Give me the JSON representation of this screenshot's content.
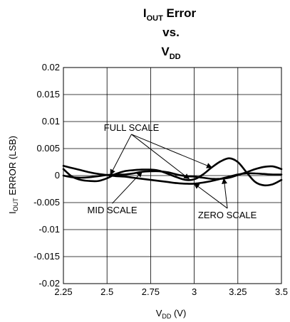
{
  "chart_data": {
    "type": "line",
    "title": {
      "line1_main": "I",
      "line1_sub": "OUT",
      "line1_rest": " Error",
      "line2": "vs.",
      "line3_main": "V",
      "line3_sub": "DD"
    },
    "xlabel": {
      "main": "V",
      "sub": "DD",
      "rest": " (V)"
    },
    "ylabel": {
      "main": "I",
      "sub": "OUT",
      "rest": " ERROR (LSB)"
    },
    "xlim": [
      2.25,
      3.5
    ],
    "ylim": [
      -0.02,
      0.02
    ],
    "x_ticks": [
      2.25,
      2.5,
      2.75,
      3,
      3.25,
      3.5
    ],
    "x_tick_labels": [
      "2.25",
      "2.5",
      "2.75",
      "3",
      "3.25",
      "3.5"
    ],
    "y_ticks": [
      0.02,
      0.015,
      0.01,
      0.005,
      0,
      -0.005,
      -0.01,
      -0.015,
      -0.02
    ],
    "y_tick_labels": [
      "0.02",
      "0.015",
      "0.01",
      "0.005",
      "0",
      "-0.005",
      "-0.01",
      "-0.015",
      "-0.02"
    ],
    "grid": true,
    "series": [
      {
        "name": "FULL SCALE",
        "x": [
          2.25,
          2.3,
          2.35,
          2.4,
          2.45,
          2.5,
          2.55,
          2.6,
          2.65,
          2.7,
          2.75,
          2.8,
          2.85,
          2.9,
          2.95,
          3.0,
          3.05,
          3.1,
          3.15,
          3.2,
          3.25,
          3.3,
          3.35,
          3.4,
          3.45,
          3.5
        ],
        "y": [
          0.0012,
          -0.0002,
          -0.0008,
          -0.001,
          -0.001,
          -0.0005,
          0.0003,
          0.0008,
          0.001,
          0.0011,
          0.0011,
          0.0009,
          0.0003,
          -0.0003,
          -0.0008,
          -0.0007,
          0.0002,
          0.0015,
          0.0026,
          0.0032,
          0.0025,
          0.0006,
          -0.0012,
          -0.0018,
          -0.0016,
          -0.0008
        ]
      },
      {
        "name": "MID SCALE",
        "x": [
          2.25,
          2.3,
          2.35,
          2.4,
          2.45,
          2.5,
          2.55,
          2.6,
          2.65,
          2.7,
          2.75,
          2.8,
          2.85,
          2.9,
          2.95,
          3.0,
          3.05,
          3.1,
          3.15,
          3.2,
          3.25,
          3.3,
          3.35,
          3.4,
          3.45,
          3.5
        ],
        "y": [
          0.0,
          -0.0003,
          -0.0004,
          -0.0003,
          -0.0001,
          0.0001,
          0.0002,
          0.0002,
          0.0004,
          0.0007,
          0.0008,
          0.0008,
          0.0006,
          0.0002,
          -0.0001,
          -0.0002,
          -0.0004,
          -0.0006,
          -0.0006,
          -0.0004,
          0.0001,
          0.0006,
          0.0012,
          0.0016,
          0.0017,
          0.0012
        ]
      },
      {
        "name": "ZERO SCALE",
        "x": [
          2.25,
          2.3,
          2.35,
          2.4,
          2.45,
          2.5,
          2.55,
          2.6,
          2.65,
          2.7,
          2.75,
          2.8,
          2.85,
          2.9,
          2.95,
          3.0,
          3.05,
          3.1,
          3.15,
          3.2,
          3.25,
          3.3,
          3.35,
          3.4,
          3.45,
          3.5
        ],
        "y": [
          0.0018,
          0.0014,
          0.001,
          0.0006,
          0.0003,
          0.0001,
          -0.0001,
          -0.0002,
          -0.0004,
          -0.0006,
          -0.0008,
          -0.001,
          -0.0012,
          -0.0014,
          -0.0015,
          -0.0015,
          -0.0013,
          -0.001,
          -0.0006,
          -0.0002,
          0.0002,
          0.0004,
          0.0004,
          0.0003,
          0.0002,
          0.0002
        ]
      }
    ],
    "annotations": [
      {
        "text": "FULL SCALE",
        "label_pos": [
          2.64,
          0.0083
        ],
        "targets": [
          [
            2.52,
            0.0002
          ],
          [
            2.97,
            -0.0006
          ],
          [
            3.1,
            0.0015
          ]
        ]
      },
      {
        "text": "MID SCALE",
        "label_pos": [
          2.53,
          -0.007
        ],
        "targets": [
          [
            2.7,
            0.0007
          ]
        ]
      },
      {
        "text": "ZERO SCALE",
        "label_pos": [
          3.19,
          -0.0079
        ],
        "targets": [
          [
            3.0,
            -0.0015
          ],
          [
            3.17,
            -0.0006
          ]
        ]
      }
    ]
  }
}
